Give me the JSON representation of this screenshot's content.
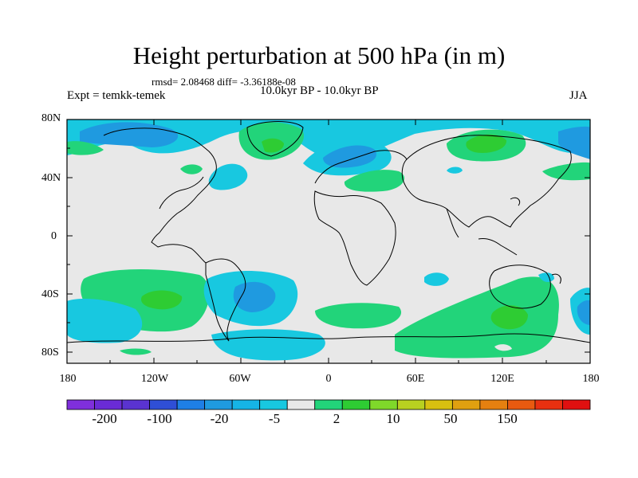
{
  "title": "Height perturbation at 500 hPa (in m)",
  "stats": "rmsd= 2.08468 diff= -3.36188e-08",
  "expt": "Expt = temkk-temek",
  "period": "10.0kyr BP - 10.0kyr BP",
  "season": "JJA",
  "lat_labels": [
    "80N",
    "40N",
    "0",
    "40S",
    "80S"
  ],
  "lon_labels": [
    "180",
    "120W",
    "60W",
    "0",
    "60E",
    "120E",
    "180"
  ],
  "colorbar": {
    "labels": [
      "-200",
      "-100",
      "-20",
      "-5",
      "2",
      "10",
      "50",
      "150"
    ],
    "colors": [
      "#7f2fdc",
      "#6a2bd6",
      "#5a33d0",
      "#2f4fd6",
      "#1e7fe6",
      "#1f9ae0",
      "#16b4e6",
      "#18c8e0",
      "#e8e8e8",
      "#22d47a",
      "#2ecc33",
      "#7fd82a",
      "#b8d020",
      "#d8c010",
      "#e0a010",
      "#e68010",
      "#e85a10",
      "#e83010",
      "#e01010"
    ]
  },
  "palette": {
    "neg_light": "#18c8e0",
    "neg_mid": "#1f9ae0",
    "pos_light": "#22d47a",
    "pos_mid": "#2ecc33",
    "neutral": "#e8e8e8"
  }
}
